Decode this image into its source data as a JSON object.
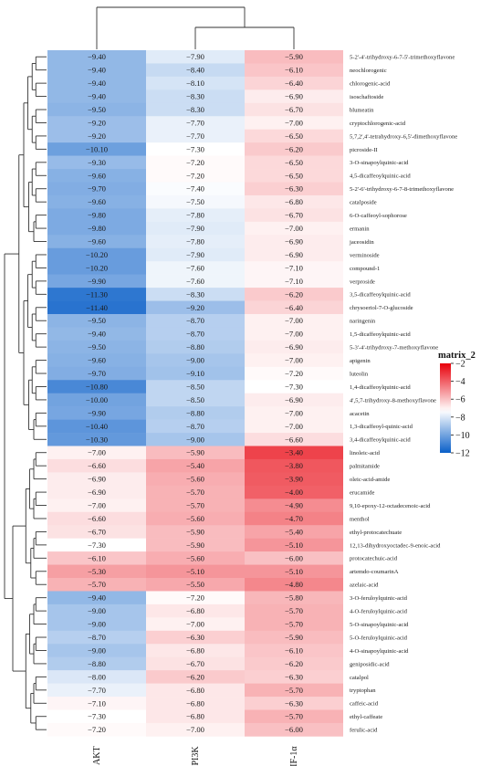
{
  "chart_data": {
    "type": "heatmap",
    "columns": [
      "AKT",
      "PI3K",
      "HIF-1α"
    ],
    "rows": [
      "5-2'-4'-trihydroxy-6-7-5'-trimethoxyflavone",
      "neochlorogenic",
      "chlorogenic-acid",
      "isoschaftoside",
      "blumeatin",
      "cryptochlorogenic-acid",
      "5,7,2',4'-tetrahydroxy-6,5'-dimethoxyflavone",
      "picroside-II",
      "3-O-sinapoylquinic-acid",
      "4,5-dicaffeoylquinic-acid",
      "5-2'-6'-trihydroxy-6-7-8-trimethoxyflavone",
      "catalposide",
      "6-O-caffeoyl-sophorose",
      "ermanin",
      "jaceosidin",
      "verminoside",
      "compound-1",
      "verproside",
      "3,5-dicaffeoylquinic-acid",
      "chrysoeriol-7-O-glucoside",
      "naringenin",
      "1,5-dicaffeoylquinic-acid",
      "5-3'-4'-trihydroxy-7-methoxyflavone",
      "apigenin",
      "luteolin",
      "1,4-dicaffeoylquinic-acid",
      "4',5,7-trihydroxy-8-methoxyflavone",
      "acacetin",
      "1,3-dicaffeoyl-quinic-acid",
      "3,4-dicaffeoylquinic-acid",
      "linoleic-acid",
      "palmitamide",
      "oleic-acid-amide",
      "erucamide",
      "9,10-epoxy-12-octadecenoic-acid",
      "menthol",
      "ethyl-protocatechuate",
      "12,13-dihydroxyoctadec-9-enoic-acid",
      "protocatechuic-acid",
      "artemdo-coumarinA",
      "azelaic-acid",
      "3-O-feruloylquinic-acid",
      "4-O-feruloylquinic-acid",
      "5-O-sinapoylquinic-acid",
      "5-O-feruloylquinic-acid",
      "4-O-sinapoylquinic-acid",
      "geniposidic-acid",
      "catalpol",
      "tryptophan",
      "caffeic-acid",
      "ethyl-caffeate",
      "ferulic-acid"
    ],
    "values": [
      [
        -9.4,
        -7.9,
        -5.9
      ],
      [
        -9.4,
        -8.4,
        -6.1
      ],
      [
        -9.4,
        -8.1,
        -6.4
      ],
      [
        -9.4,
        -8.3,
        -6.9
      ],
      [
        -9.5,
        -8.3,
        -6.7
      ],
      [
        -9.2,
        -7.7,
        -7.0
      ],
      [
        -9.2,
        -7.7,
        -6.5
      ],
      [
        -10.1,
        -7.3,
        -6.2
      ],
      [
        -9.3,
        -7.2,
        -6.5
      ],
      [
        -9.6,
        -7.2,
        -6.5
      ],
      [
        -9.7,
        -7.4,
        -6.3
      ],
      [
        -9.6,
        -7.5,
        -6.8
      ],
      [
        -9.8,
        -7.8,
        -6.7
      ],
      [
        -9.8,
        -7.9,
        -7.0
      ],
      [
        -9.6,
        -7.8,
        -6.9
      ],
      [
        -10.2,
        -7.9,
        -6.9
      ],
      [
        -10.2,
        -7.6,
        -7.1
      ],
      [
        -9.9,
        -7.6,
        -7.1
      ],
      [
        -11.3,
        -8.3,
        -6.2
      ],
      [
        -11.4,
        -9.2,
        -6.4
      ],
      [
        -9.5,
        -8.7,
        -7.0
      ],
      [
        -9.4,
        -8.7,
        -7.0
      ],
      [
        -9.5,
        -8.8,
        -6.9
      ],
      [
        -9.6,
        -9.0,
        -7.0
      ],
      [
        -9.7,
        -9.1,
        -7.2
      ],
      [
        -10.8,
        -8.5,
        -7.3
      ],
      [
        -10.0,
        -8.5,
        -6.9
      ],
      [
        -9.9,
        -8.8,
        -7.0
      ],
      [
        -10.4,
        -8.7,
        -7.0
      ],
      [
        -10.3,
        -9.0,
        -6.6
      ],
      [
        -7.0,
        -5.9,
        -3.4
      ],
      [
        -6.6,
        -5.4,
        -3.8
      ],
      [
        -6.9,
        -5.6,
        -3.9
      ],
      [
        -6.9,
        -5.7,
        -4.0
      ],
      [
        -7.0,
        -5.7,
        -4.9
      ],
      [
        -6.6,
        -5.6,
        -4.7
      ],
      [
        -6.7,
        -5.9,
        -5.4
      ],
      [
        -7.3,
        -5.9,
        -5.1
      ],
      [
        -6.1,
        -5.6,
        -6.0
      ],
      [
        -5.3,
        -5.1,
        -5.1
      ],
      [
        -5.7,
        -5.5,
        -4.8
      ],
      [
        -9.4,
        -7.2,
        -5.8
      ],
      [
        -9.0,
        -6.8,
        -5.7
      ],
      [
        -9.0,
        -7.0,
        -5.7
      ],
      [
        -8.7,
        -6.3,
        -5.9
      ],
      [
        -9.0,
        -6.8,
        -6.1
      ],
      [
        -8.8,
        -6.7,
        -6.2
      ],
      [
        -8.0,
        -6.2,
        -6.3
      ],
      [
        -7.7,
        -6.8,
        -5.7
      ],
      [
        -7.1,
        -6.8,
        -6.3
      ],
      [
        -7.3,
        -6.8,
        -5.7
      ],
      [
        -7.2,
        -7.0,
        -6.0
      ]
    ],
    "value_labels": [
      [
        "−9.40",
        "−7.90",
        "−5.90"
      ],
      [
        "−9.40",
        "−8.40",
        "−6.10"
      ],
      [
        "−9.40",
        "−8.10",
        "−6.40"
      ],
      [
        "−9.40",
        "−8.30",
        "−6.90"
      ],
      [
        "−9.50",
        "−8.30",
        "−6.70"
      ],
      [
        "−9.20",
        "−7.70",
        "−7.00"
      ],
      [
        "−9.20",
        "−7.70",
        "−6.50"
      ],
      [
        "−10.10",
        "−7.30",
        "−6.20"
      ],
      [
        "−9.30",
        "−7.20",
        "−6.50"
      ],
      [
        "−9.60",
        "−7.20",
        "−6.50"
      ],
      [
        "−9.70",
        "−7.40",
        "−6.30"
      ],
      [
        "−9.60",
        "−7.50",
        "−6.80"
      ],
      [
        "−9.80",
        "−7.80",
        "−6.70"
      ],
      [
        "−9.80",
        "−7.90",
        "−7.00"
      ],
      [
        "−9.60",
        "−7.80",
        "−6.90"
      ],
      [
        "−10.20",
        "−7.90",
        "−6.90"
      ],
      [
        "−10.20",
        "−7.60",
        "−7.10"
      ],
      [
        "−9.90",
        "−7.60",
        "−7.10"
      ],
      [
        "−11.30",
        "−8.30",
        "−6.20"
      ],
      [
        "−11.40",
        "−9.20",
        "−6.40"
      ],
      [
        "−9.50",
        "−8.70",
        "−7.00"
      ],
      [
        "−9.40",
        "−8.70",
        "−7.00"
      ],
      [
        "−9.50",
        "−8.80",
        "−6.90"
      ],
      [
        "−9.60",
        "−9.00",
        "−7.00"
      ],
      [
        "−9.70",
        "−9.10",
        "−7.20"
      ],
      [
        "−10.80",
        "−8.50",
        "−7.30"
      ],
      [
        "−10.00",
        "−8.50",
        "−6.90"
      ],
      [
        "−9.90",
        "−8.80",
        "−7.00"
      ],
      [
        "−10.40",
        "−8.70",
        "−7.00"
      ],
      [
        "−10.30",
        "−9.00",
        "−6.60"
      ],
      [
        "−7.00",
        "−5.90",
        "−3.40"
      ],
      [
        "−6.60",
        "−5.40",
        "−3.80"
      ],
      [
        "−6.90",
        "−5.60",
        "−3.90"
      ],
      [
        "−6.90",
        "−5.70",
        "−4.00"
      ],
      [
        "−7.00",
        "−5.70",
        "−4.90"
      ],
      [
        "−6.60",
        "−5.60",
        "−4.70"
      ],
      [
        "−6.70",
        "−5.90",
        "−5.40"
      ],
      [
        "−7.30",
        "−5.90",
        "−5.10"
      ],
      [
        "−6.10",
        "−5.60",
        "−6.00"
      ],
      [
        "−5.30",
        "−5.10",
        "−5.10"
      ],
      [
        "−5.70",
        "−5.50",
        "−4.80"
      ],
      [
        "−9.40",
        "−7.20",
        "−5.80"
      ],
      [
        "−9.00",
        "−6.80",
        "−5.70"
      ],
      [
        "−9.00",
        "−7.00",
        "−5.70"
      ],
      [
        "−8.70",
        "−6.30",
        "−5.90"
      ],
      [
        "−9.00",
        "−6.80",
        "−6.10"
      ],
      [
        "−8.80",
        "−6.70",
        "−6.20"
      ],
      [
        "−8.00",
        "−6.20",
        "−6.30"
      ],
      [
        "−7.70",
        "−6.80",
        "−5.70"
      ],
      [
        "−7.10",
        "−6.80",
        "−6.30"
      ],
      [
        "−7.30",
        "−6.80",
        "−5.70"
      ],
      [
        "−7.20",
        "−7.00",
        "−6.00"
      ]
    ],
    "legend": {
      "title": "matrix_2",
      "ticks": [
        -2,
        -4,
        -6,
        -8,
        -10,
        -12
      ],
      "tick_labels": [
        "−2",
        "−4",
        "−6",
        "−8",
        "−10",
        "−12"
      ],
      "range": [
        -12,
        -2
      ],
      "placement": "right"
    },
    "colors": {
      "low": "#0a5fc8",
      "mid": "#ffffff",
      "high": "#e8000b",
      "midpoint": -7.3
    },
    "dendrograms": {
      "columns": "top",
      "rows": "left"
    }
  }
}
